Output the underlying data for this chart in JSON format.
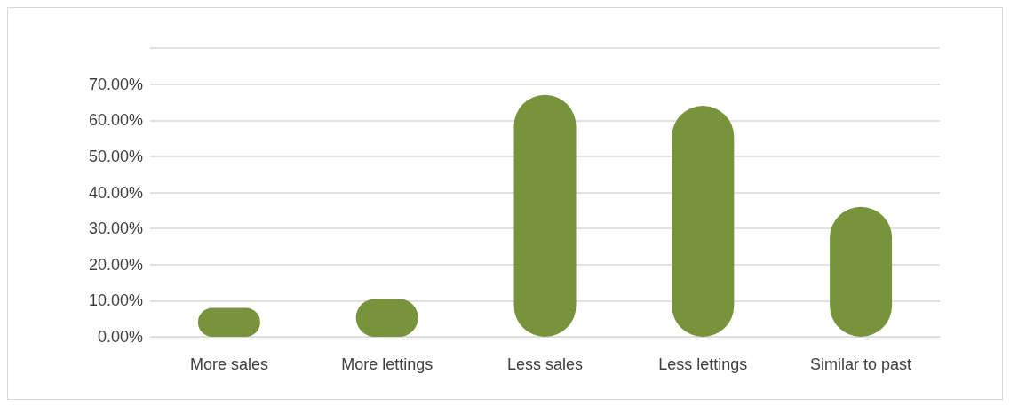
{
  "chart_data": {
    "type": "bar",
    "categories": [
      "More sales",
      "More lettings",
      "Less sales",
      "Less lettings",
      "Similar to past"
    ],
    "values": [
      8,
      10.5,
      67,
      64,
      36
    ],
    "color": "#77933c",
    "ylim": [
      0,
      80
    ],
    "yticks": [
      {
        "value": 0,
        "label": "0.00%"
      },
      {
        "value": 10,
        "label": "10.00%"
      },
      {
        "value": 20,
        "label": "20.00%"
      },
      {
        "value": 30,
        "label": "30.00%"
      },
      {
        "value": 40,
        "label": "40.00%"
      },
      {
        "value": 50,
        "label": "50.00%"
      },
      {
        "value": 60,
        "label": "60.00%"
      },
      {
        "value": 70,
        "label": "70.00%"
      },
      {
        "value": 80,
        "label": null
      }
    ],
    "grid": true
  }
}
